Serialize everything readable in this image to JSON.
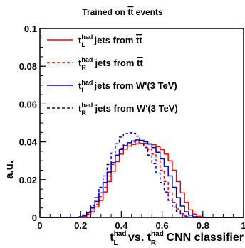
{
  "chart_data": {
    "type": "line",
    "title": "Trained on t̄t events",
    "title_parts": {
      "pre": "Trained on ",
      "mark": "tt",
      "post": " events"
    },
    "xlabel": "t_L^had vs. t_R^had CNN classifier",
    "xlabel_parts": {
      "t": "t",
      "had": "had",
      "L": "L",
      "vs": " vs. ",
      "R": "R",
      "rest": " CNN classifier"
    },
    "ylabel": "a.u.",
    "xlim": [
      0,
      1
    ],
    "ylim": [
      0,
      0.1
    ],
    "xticks": [
      "0",
      "0.2",
      "0.4",
      "0.6",
      "0.8",
      "1"
    ],
    "yticks": [
      "0",
      "0.02",
      "0.04",
      "0.06",
      "0.08",
      "0.1"
    ],
    "grid": false,
    "legend_position": "top-left",
    "x": [
      0.0,
      0.02,
      0.04,
      0.06,
      0.08,
      0.1,
      0.12,
      0.14,
      0.16,
      0.18,
      0.2,
      0.22,
      0.24,
      0.26,
      0.28,
      0.3,
      0.32,
      0.34,
      0.36,
      0.38,
      0.4,
      0.42,
      0.44,
      0.46,
      0.48,
      0.5,
      0.52,
      0.54,
      0.56,
      0.58,
      0.6,
      0.62,
      0.64,
      0.66,
      0.68,
      0.7,
      0.72,
      0.74,
      0.76,
      0.78,
      0.8,
      0.82,
      0.84,
      0.86,
      0.88,
      0.9,
      0.92,
      0.94,
      0.96,
      0.98,
      1.0
    ],
    "series": [
      {
        "name": "t_L^had jets from tt",
        "legend": {
          "sub": "L",
          "sup": "had",
          "text": " jets from ",
          "tail": "tt"
        },
        "color": "#ff0000",
        "dash": "solid",
        "values": [
          0,
          0,
          0,
          0,
          0,
          0,
          0,
          0,
          0,
          0,
          0.0002,
          0.0006,
          0.0015,
          0.003,
          0.0055,
          0.009,
          0.0135,
          0.019,
          0.0245,
          0.0295,
          0.0335,
          0.0362,
          0.0378,
          0.0386,
          0.039,
          0.0392,
          0.0392,
          0.039,
          0.0385,
          0.0375,
          0.036,
          0.0335,
          0.03,
          0.025,
          0.019,
          0.013,
          0.008,
          0.004,
          0.0018,
          0.0006,
          0.0002,
          0,
          0,
          0,
          0,
          0,
          0,
          0,
          0,
          0,
          0
        ]
      },
      {
        "name": "t_R^had jets from tt",
        "legend": {
          "sub": "R",
          "sup": "had",
          "text": " jets from ",
          "tail": "tt"
        },
        "color": "#ff0000",
        "dash": "dashed",
        "values": [
          0,
          0,
          0,
          0,
          0,
          0,
          0,
          0,
          0,
          0,
          0.0002,
          0.0008,
          0.002,
          0.004,
          0.007,
          0.011,
          0.016,
          0.022,
          0.028,
          0.033,
          0.0365,
          0.0385,
          0.0395,
          0.04,
          0.0398,
          0.039,
          0.0378,
          0.036,
          0.0335,
          0.03,
          0.025,
          0.019,
          0.013,
          0.008,
          0.0045,
          0.002,
          0.0008,
          0.0002,
          0,
          0,
          0,
          0,
          0,
          0,
          0,
          0,
          0,
          0,
          0,
          0,
          0
        ]
      },
      {
        "name": "t_L^had jets from W'(3 TeV)",
        "legend": {
          "sub": "L",
          "sup": "had",
          "text": " jets from W'(3 TeV)",
          "tail": ""
        },
        "color": "#0000cc",
        "dash": "solid",
        "values": [
          0,
          0,
          0,
          0,
          0,
          0,
          0,
          0,
          0,
          0,
          0.0003,
          0.001,
          0.0025,
          0.005,
          0.0085,
          0.013,
          0.0185,
          0.024,
          0.029,
          0.033,
          0.036,
          0.038,
          0.0395,
          0.0405,
          0.041,
          0.0408,
          0.04,
          0.0388,
          0.037,
          0.0345,
          0.031,
          0.027,
          0.022,
          0.016,
          0.0105,
          0.006,
          0.003,
          0.0012,
          0.0004,
          0.0001,
          0,
          0,
          0,
          0,
          0,
          0,
          0,
          0,
          0,
          0,
          0
        ]
      },
      {
        "name": "t_R^had jets from W'(3 TeV)",
        "legend": {
          "sub": "R",
          "sup": "had",
          "text": " jets from W'(3 TeV)",
          "tail": ""
        },
        "color": "#0000cc",
        "dash": "dashed",
        "values": [
          0,
          0,
          0,
          0,
          0,
          0,
          0,
          0,
          0,
          0,
          0.0004,
          0.0013,
          0.003,
          0.0062,
          0.0105,
          0.016,
          0.022,
          0.028,
          0.034,
          0.039,
          0.0425,
          0.0443,
          0.0448,
          0.0445,
          0.043,
          0.0405,
          0.037,
          0.033,
          0.0285,
          0.0235,
          0.0185,
          0.0135,
          0.009,
          0.0055,
          0.003,
          0.0013,
          0.0004,
          0.0001,
          0,
          0,
          0,
          0,
          0,
          0,
          0,
          0,
          0,
          0,
          0,
          0,
          0
        ]
      }
    ]
  }
}
